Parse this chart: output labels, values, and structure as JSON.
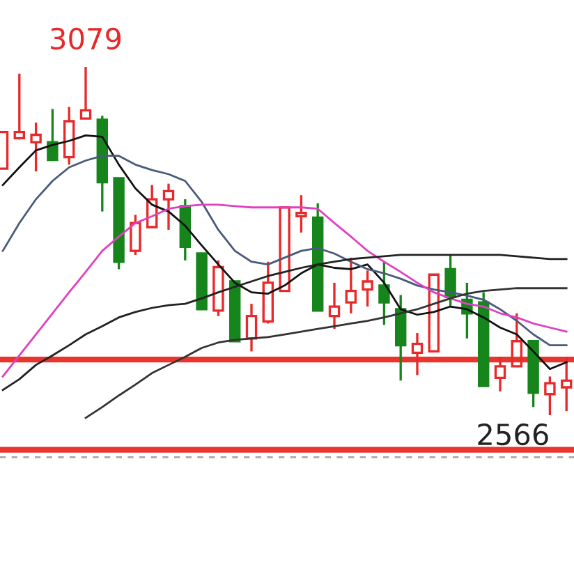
{
  "chart_data": {
    "type": "candlestick",
    "categories": [
      null,
      null,
      null,
      null,
      null,
      null,
      null,
      null,
      null,
      null,
      null,
      null,
      null,
      null,
      null,
      null,
      null,
      null,
      null,
      null,
      null,
      null,
      null,
      null,
      null,
      null,
      null,
      null,
      null,
      null,
      null,
      null,
      null,
      null,
      null
    ],
    "ohlc": [
      [
        2929,
        2983,
        2929,
        2983
      ],
      [
        2974,
        3069,
        2972,
        2983
      ],
      [
        2968,
        2997,
        2925,
        2979
      ],
      [
        2968,
        3017,
        2942,
        2942
      ],
      [
        2946,
        3020,
        2935,
        2999
      ],
      [
        3003,
        3079,
        3003,
        3015
      ],
      [
        3001,
        3007,
        2866,
        2909
      ],
      [
        2915,
        2915,
        2781,
        2792
      ],
      [
        2808,
        2861,
        2802,
        2849
      ],
      [
        2843,
        2905,
        2843,
        2884
      ],
      [
        2884,
        2907,
        2839,
        2896
      ],
      [
        2874,
        2884,
        2794,
        2814
      ],
      [
        2804,
        2804,
        2722,
        2722
      ],
      [
        2720,
        2794,
        2712,
        2784
      ],
      [
        2763,
        2763,
        2675,
        2675
      ],
      [
        2679,
        2730,
        2660,
        2712
      ],
      [
        2704,
        2792,
        2701,
        2761
      ],
      [
        2749,
        2872,
        2749,
        2872
      ],
      [
        2859,
        2890,
        2835,
        2864
      ],
      [
        2857,
        2878,
        2720,
        2720
      ],
      [
        2712,
        2761,
        2693,
        2726
      ],
      [
        2732,
        2798,
        2716,
        2749
      ],
      [
        2751,
        2779,
        2726,
        2763
      ],
      [
        2757,
        2792,
        2699,
        2732
      ],
      [
        2722,
        2743,
        2617,
        2669
      ],
      [
        2658,
        2687,
        2625,
        2671
      ],
      [
        2660,
        2773,
        2660,
        2773
      ],
      [
        2781,
        2802,
        2726,
        2740
      ],
      [
        2736,
        2761,
        2679,
        2716
      ],
      [
        2732,
        2747,
        2609,
        2609
      ],
      [
        2621,
        2652,
        2601,
        2638
      ],
      [
        2638,
        2716,
        2638,
        2675
      ],
      [
        2675,
        2675,
        2578,
        2599
      ],
      [
        2597,
        2623,
        2566,
        2613
      ],
      [
        2607,
        2652,
        2572,
        2617
      ]
    ],
    "colors": [
      "#e8282a",
      "#e8282a",
      "#e8282a",
      "#16851c",
      "#e8282a",
      "#e8282a",
      "#16851c",
      "#16851c",
      "#e8282a",
      "#e8282a",
      "#e8282a",
      "#16851c",
      "#16851c",
      "#e8282a",
      "#16851c",
      "#e8282a",
      "#e8282a",
      "#e8282a",
      "#e8282a",
      "#16851c",
      "#e8282a",
      "#e8282a",
      "#e8282a",
      "#16851c",
      "#16851c",
      "#e8282a",
      "#e8282a",
      "#16851c",
      "#16851c",
      "#16851c",
      "#e8282a",
      "#e8282a",
      "#16851c",
      "#e8282a",
      "#e8282a"
    ],
    "series": [
      {
        "type": "line",
        "color": "#111111",
        "values": [
          2905,
          2931,
          2956,
          2964,
          2970,
          2978,
          2976,
          2935,
          2900,
          2876,
          2866,
          2845,
          2816,
          2788,
          2761,
          2747,
          2745,
          2757,
          2775,
          2788,
          2783,
          2781,
          2788,
          2761,
          2722,
          2714,
          2718,
          2726,
          2722,
          2710,
          2695,
          2685,
          2660,
          2634,
          2644
        ]
      },
      {
        "type": "line",
        "color": "#4a5a7a",
        "values": [
          2808,
          2849,
          2884,
          2911,
          2931,
          2941,
          2948,
          2948,
          2935,
          2927,
          2921,
          2911,
          2880,
          2839,
          2808,
          2792,
          2788,
          2798,
          2808,
          2812,
          2804,
          2792,
          2781,
          2775,
          2767,
          2757,
          2751,
          2747,
          2742,
          2736,
          2722,
          2705,
          2685,
          2669,
          2669
        ]
      },
      {
        "type": "line",
        "color": "#e040c0",
        "values": [
          2623,
          2654,
          2685,
          2716,
          2747,
          2777,
          2808,
          2829,
          2849,
          2859,
          2870,
          2874,
          2876,
          2876,
          2874,
          2872,
          2872,
          2872,
          2872,
          2870,
          2849,
          2829,
          2808,
          2792,
          2777,
          2761,
          2747,
          2738,
          2730,
          2726,
          2716,
          2710,
          2701,
          2695,
          2689
        ]
      },
      {
        "type": "line",
        "color": "#222222",
        "values": [
          2603,
          2619,
          2640,
          2654,
          2669,
          2685,
          2697,
          2710,
          2718,
          2724,
          2728,
          2730,
          2738,
          2747,
          2755,
          2763,
          2771,
          2777,
          2783,
          2788,
          2792,
          2796,
          2798,
          2800,
          2802,
          2802,
          2802,
          2802,
          2802,
          2802,
          2802,
          2800,
          2798,
          2796,
          2796
        ]
      },
      {
        "type": "line",
        "color": "#333333",
        "values": [
          null,
          null,
          null,
          null,
          null,
          2562,
          2578,
          2595,
          2611,
          2628,
          2640,
          2652,
          2665,
          2673,
          2677,
          2679,
          2681,
          2685,
          2689,
          2693,
          2697,
          2701,
          2705,
          2710,
          2716,
          2722,
          2730,
          2738,
          2745,
          2749,
          2751,
          2753,
          2753,
          2753,
          2753
        ]
      }
    ],
    "ref_lines": [
      {
        "axis": "y",
        "value": 2648,
        "color": "#e8362f",
        "line_style": "solid"
      },
      {
        "axis": "y",
        "value": 2515,
        "color": "#e8362f",
        "line_style": "solid"
      },
      {
        "axis": "y",
        "value": 2504,
        "color": "#aaaaaa",
        "line_style": "dashed"
      }
    ],
    "annotations": [
      "3079",
      "2566"
    ]
  }
}
